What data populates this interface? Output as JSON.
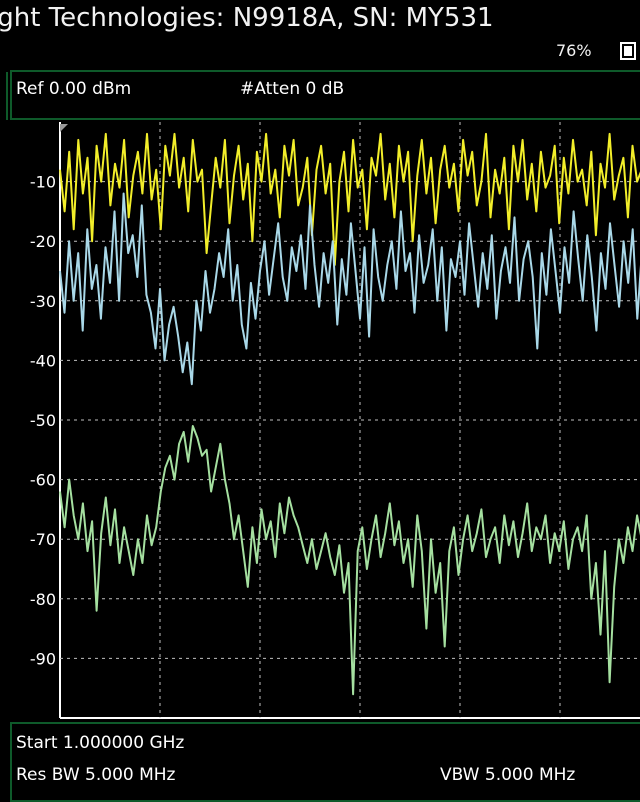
{
  "title": "ight Technologies: N9918A, SN: MY531",
  "battery": {
    "percent": "76%",
    "icon": "battery-icon"
  },
  "header": {
    "ref": "Ref 0.00 dBm",
    "atten": "#Atten 0 dB"
  },
  "footer": {
    "start": "Start 1.000000 GHz",
    "rbw": "Res BW 5.000 MHz",
    "vbw": "VBW 5.000 MHz"
  },
  "colors": {
    "background": "#000000",
    "grid": "#bfbfbf",
    "trace1": "#f2ee2a",
    "trace2": "#a9d8e8",
    "trace3": "#a5e0a0",
    "panel_border": "#0e5a2a"
  },
  "chart_data": {
    "type": "line",
    "ylim": [
      -100,
      0
    ],
    "yticks": [
      "-10",
      "-20",
      "-30",
      "-40",
      "-50",
      "-60",
      "-70",
      "-80",
      "-90"
    ],
    "x_divisions": 10,
    "series": [
      {
        "values": [
          -8,
          -15,
          -5,
          -18,
          -3,
          -12,
          -6,
          -20,
          -4,
          -10,
          -2,
          -14,
          -7,
          -11,
          -3,
          -16,
          -9,
          -5,
          -12,
          -2,
          -13,
          -8,
          -18,
          -4,
          -9,
          -2,
          -11,
          -6,
          -15,
          -3,
          -10,
          -8,
          -22,
          -14,
          -6,
          -11,
          -3,
          -17,
          -9,
          -4,
          -13,
          -7,
          -20,
          -5,
          -10,
          -2,
          -12,
          -8,
          -16,
          -4,
          -9,
          -3,
          -14,
          -11,
          -6,
          -19,
          -8,
          -4,
          -12,
          -7,
          -24,
          -10,
          -5,
          -15,
          -3,
          -11,
          -8,
          -18,
          -6,
          -9,
          -2,
          -13,
          -7,
          -16,
          -4,
          -10,
          -5,
          -20,
          -9,
          -3,
          -12,
          -6,
          -17,
          -8,
          -4,
          -11,
          -7,
          -15,
          -3,
          -9,
          -5,
          -14,
          -10,
          -2,
          -16,
          -8,
          -12,
          -6,
          -18,
          -4,
          -10,
          -3,
          -13,
          -7,
          -15,
          -5,
          -11,
          -9,
          -4,
          -17,
          -6,
          -12,
          -3,
          -10,
          -8,
          -14,
          -5,
          -19,
          -7,
          -11,
          -2,
          -13,
          -9,
          -6,
          -16,
          -4,
          -10,
          -8,
          -12,
          -5,
          -15,
          -3
        ]
      },
      {
        "values": [
          -25,
          -32,
          -20,
          -30,
          -22,
          -35,
          -18,
          -28,
          -24,
          -33,
          -21,
          -27,
          -15,
          -30,
          -12,
          -22,
          -19,
          -26,
          -14,
          -29,
          -32,
          -38,
          -28,
          -40,
          -34,
          -31,
          -36,
          -42,
          -37,
          -44,
          -30,
          -35,
          -25,
          -32,
          -28,
          -22,
          -26,
          -18,
          -30,
          -24,
          -34,
          -38,
          -27,
          -33,
          -25,
          -20,
          -29,
          -23,
          -17,
          -26,
          -30,
          -21,
          -25,
          -19,
          -28,
          -14,
          -24,
          -31,
          -22,
          -27,
          -20,
          -34,
          -23,
          -29,
          -17,
          -25,
          -33,
          -21,
          -36,
          -18,
          -26,
          -30,
          -24,
          -20,
          -28,
          -15,
          -25,
          -22,
          -32,
          -19,
          -27,
          -24,
          -18,
          -30,
          -21,
          -35,
          -23,
          -26,
          -20,
          -29,
          -17,
          -24,
          -31,
          -22,
          -28,
          -19,
          -33,
          -25,
          -21,
          -27,
          -16,
          -30,
          -23,
          -20,
          -26,
          -38,
          -22,
          -29,
          -18,
          -25,
          -32,
          -21,
          -27,
          -15,
          -23,
          -30,
          -19,
          -26,
          -35,
          -22,
          -28,
          -17,
          -24,
          -31,
          -20,
          -27,
          -18,
          -33,
          -22,
          -26,
          -19,
          -29,
          -21
        ]
      },
      {
        "values": [
          -62,
          -68,
          -60,
          -66,
          -70,
          -64,
          -72,
          -67,
          -82,
          -69,
          -63,
          -71,
          -65,
          -74,
          -68,
          -72,
          -76,
          -70,
          -74,
          -66,
          -71,
          -68,
          -62,
          -58,
          -56,
          -60,
          -54,
          -52,
          -57,
          -51,
          -53,
          -56,
          -55,
          -62,
          -58,
          -54,
          -60,
          -64,
          -70,
          -66,
          -72,
          -78,
          -68,
          -74,
          -65,
          -70,
          -67,
          -73,
          -64,
          -69,
          -63,
          -66,
          -68,
          -71,
          -74,
          -70,
          -75,
          -72,
          -69,
          -73,
          -76,
          -71,
          -79,
          -74,
          -96,
          -72,
          -68,
          -75,
          -70,
          -66,
          -73,
          -69,
          -64,
          -71,
          -67,
          -74,
          -70,
          -78,
          -66,
          -72,
          -85,
          -70,
          -79,
          -74,
          -88,
          -72,
          -68,
          -76,
          -70,
          -66,
          -72,
          -69,
          -65,
          -73,
          -70,
          -68,
          -74,
          -66,
          -71,
          -67,
          -73,
          -69,
          -64,
          -72,
          -68,
          -70,
          -66,
          -74,
          -69,
          -72,
          -67,
          -75,
          -70,
          -68,
          -72,
          -66,
          -80,
          -74,
          -86,
          -72,
          -94,
          -78,
          -70,
          -74,
          -68,
          -72,
          -66,
          -70,
          -64,
          -69,
          -67,
          -71
        ]
      }
    ]
  }
}
